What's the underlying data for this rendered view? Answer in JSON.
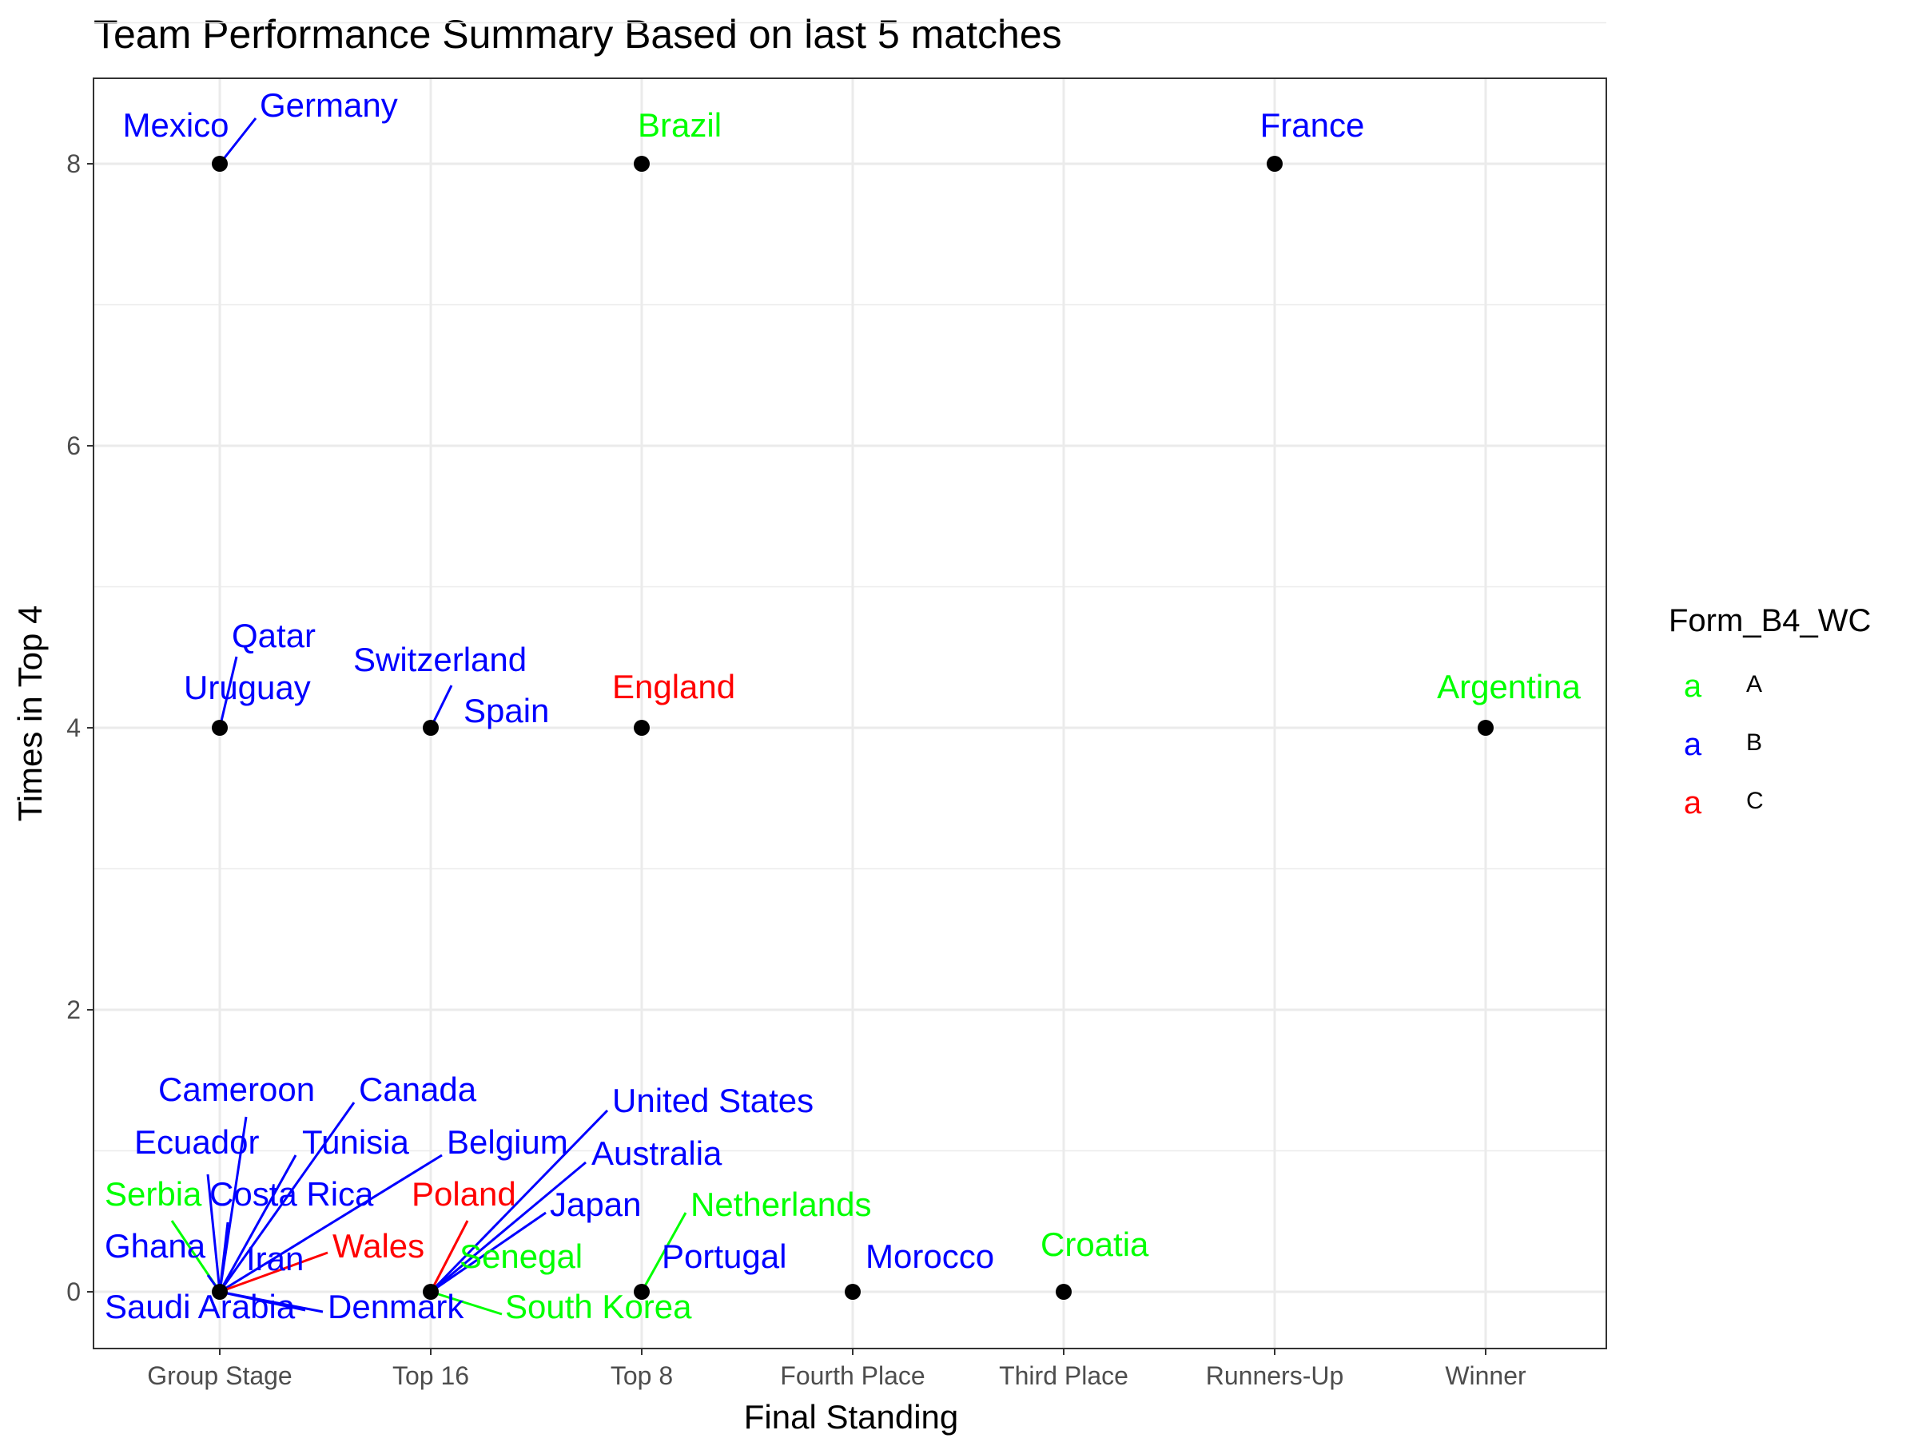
{
  "chart_data": {
    "type": "scatter",
    "title": "Team Performance Summary Based on last 5 matches",
    "xlabel": "Final Standing",
    "ylabel": "Times in Top 4",
    "categories": [
      "Group Stage",
      "Top 16",
      "Top 8",
      "Fourth Place",
      "Third Place",
      "Runners-Up",
      "Winner"
    ],
    "y_ticks": [
      0,
      2,
      4,
      6,
      8
    ],
    "ylim": [
      -0.4,
      8.6
    ],
    "grid": true,
    "legend": {
      "title": "Form_B4_WC",
      "position": "right",
      "key_glyph": "a",
      "entries": [
        {
          "label": "A",
          "color": "#00ff00"
        },
        {
          "label": "B",
          "color": "#0000ff"
        },
        {
          "label": "C",
          "color": "#ff0000"
        }
      ]
    },
    "points": [
      {
        "team": "Mexico",
        "x": "Group Stage",
        "y": 8,
        "form": "B"
      },
      {
        "team": "Germany",
        "x": "Group Stage",
        "y": 8,
        "form": "B"
      },
      {
        "team": "Brazil",
        "x": "Top 8",
        "y": 8,
        "form": "A"
      },
      {
        "team": "France",
        "x": "Runners-Up",
        "y": 8,
        "form": "B"
      },
      {
        "team": "Qatar",
        "x": "Group Stage",
        "y": 4,
        "form": "B"
      },
      {
        "team": "Uruguay",
        "x": "Group Stage",
        "y": 4,
        "form": "B"
      },
      {
        "team": "Switzerland",
        "x": "Top 16",
        "y": 4,
        "form": "B"
      },
      {
        "team": "Spain",
        "x": "Top 16",
        "y": 4,
        "form": "B"
      },
      {
        "team": "England",
        "x": "Top 8",
        "y": 4,
        "form": "C"
      },
      {
        "team": "Argentina",
        "x": "Winner",
        "y": 4,
        "form": "A"
      },
      {
        "team": "Cameroon",
        "x": "Group Stage",
        "y": 0,
        "form": "B"
      },
      {
        "team": "Canada",
        "x": "Group Stage",
        "y": 0,
        "form": "B"
      },
      {
        "team": "Ecuador",
        "x": "Group Stage",
        "y": 0,
        "form": "B"
      },
      {
        "team": "Tunisia",
        "x": "Group Stage",
        "y": 0,
        "form": "B"
      },
      {
        "team": "Belgium",
        "x": "Group Stage",
        "y": 0,
        "form": "B"
      },
      {
        "team": "Serbia",
        "x": "Group Stage",
        "y": 0,
        "form": "A"
      },
      {
        "team": "Costa Rica",
        "x": "Group Stage",
        "y": 0,
        "form": "B"
      },
      {
        "team": "Ghana",
        "x": "Group Stage",
        "y": 0,
        "form": "B"
      },
      {
        "team": "Iran",
        "x": "Group Stage",
        "y": 0,
        "form": "B"
      },
      {
        "team": "Wales",
        "x": "Group Stage",
        "y": 0,
        "form": "C"
      },
      {
        "team": "Saudi Arabia",
        "x": "Group Stage",
        "y": 0,
        "form": "B"
      },
      {
        "team": "Denmark",
        "x": "Group Stage",
        "y": 0,
        "form": "B"
      },
      {
        "team": "United States",
        "x": "Top 16",
        "y": 0,
        "form": "B"
      },
      {
        "team": "Australia",
        "x": "Top 16",
        "y": 0,
        "form": "B"
      },
      {
        "team": "Poland",
        "x": "Top 16",
        "y": 0,
        "form": "C"
      },
      {
        "team": "Japan",
        "x": "Top 16",
        "y": 0,
        "form": "B"
      },
      {
        "team": "Senegal",
        "x": "Top 16",
        "y": 0,
        "form": "A"
      },
      {
        "team": "South Korea",
        "x": "Top 16",
        "y": 0,
        "form": "A"
      },
      {
        "team": "Netherlands",
        "x": "Top 8",
        "y": 0,
        "form": "A"
      },
      {
        "team": "Portugal",
        "x": "Top 8",
        "y": 0,
        "form": "B"
      },
      {
        "team": "Morocco",
        "x": "Fourth Place",
        "y": 0,
        "form": "B"
      },
      {
        "team": "Croatia",
        "x": "Third Place",
        "y": 0,
        "form": "A"
      }
    ]
  }
}
